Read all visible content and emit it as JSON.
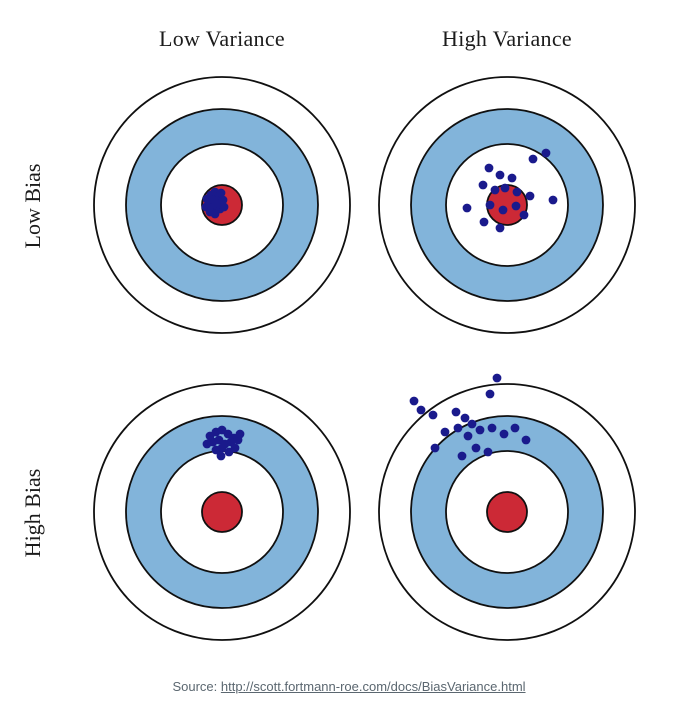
{
  "columns": [
    "Low Variance",
    "High Variance"
  ],
  "rows": [
    "Low Bias",
    "High Bias"
  ],
  "source": {
    "prefix": "Source: ",
    "link": "http://scott.fortmann-roe.com/docs/BiasVariance.html"
  },
  "target": {
    "ring_stroke_width": 1.8,
    "rings": [
      {
        "r": 128,
        "fill": "#ffffff",
        "stroke": "#101010"
      },
      {
        "r": 96,
        "fill": "#82b4da",
        "stroke": "#101010"
      },
      {
        "r": 61,
        "fill": "#ffffff",
        "stroke": "#101010"
      },
      {
        "r": 20,
        "fill": "#cc2936",
        "stroke": "#101010"
      }
    ],
    "dot": {
      "r": 4.4,
      "fill": "#1a1a8c"
    }
  },
  "panels": [
    {
      "name": "low-bias-low-variance",
      "dots": [
        [
          -15,
          -6
        ],
        [
          -11,
          -10
        ],
        [
          -7,
          -13
        ],
        [
          -3,
          -9
        ],
        [
          -13,
          -2
        ],
        [
          -9,
          -5
        ],
        [
          -5,
          -4
        ],
        [
          -1,
          -12
        ],
        [
          -16,
          2
        ],
        [
          -10,
          3
        ],
        [
          -6,
          0
        ],
        [
          -2,
          4
        ],
        [
          -12,
          7
        ],
        [
          -7,
          9
        ],
        [
          -3,
          -1
        ],
        [
          1,
          -5
        ],
        [
          2,
          2
        ]
      ]
    },
    {
      "name": "low-bias-high-variance",
      "dots": [
        [
          26,
          -46
        ],
        [
          39,
          -52
        ],
        [
          -18,
          -37
        ],
        [
          -7,
          -30
        ],
        [
          5,
          -27
        ],
        [
          -24,
          -20
        ],
        [
          -12,
          -15
        ],
        [
          -2,
          -17
        ],
        [
          10,
          -13
        ],
        [
          23,
          -9
        ],
        [
          46,
          -5
        ],
        [
          -40,
          3
        ],
        [
          -17,
          0
        ],
        [
          -4,
          5
        ],
        [
          9,
          1
        ],
        [
          -23,
          17
        ],
        [
          -7,
          23
        ],
        [
          17,
          10
        ]
      ]
    },
    {
      "name": "high-bias-low-variance",
      "dots": [
        [
          -12,
          -76
        ],
        [
          -6,
          -80
        ],
        [
          0,
          -82
        ],
        [
          6,
          -78
        ],
        [
          12,
          -74
        ],
        [
          -15,
          -68
        ],
        [
          -9,
          -70
        ],
        [
          -3,
          -72
        ],
        [
          3,
          -68
        ],
        [
          9,
          -70
        ],
        [
          16,
          -72
        ],
        [
          -6,
          -62
        ],
        [
          0,
          -64
        ],
        [
          7,
          -60
        ],
        [
          13,
          -64
        ],
        [
          -1,
          -56
        ],
        [
          18,
          -78
        ]
      ]
    },
    {
      "name": "high-bias-high-variance",
      "dots": [
        [
          -10,
          -134
        ],
        [
          -17,
          -118
        ],
        [
          -93,
          -111
        ],
        [
          -86,
          -102
        ],
        [
          -74,
          -97
        ],
        [
          -51,
          -100
        ],
        [
          -42,
          -94
        ],
        [
          -35,
          -88
        ],
        [
          -49,
          -84
        ],
        [
          -62,
          -80
        ],
        [
          -39,
          -76
        ],
        [
          -27,
          -82
        ],
        [
          -15,
          -84
        ],
        [
          -3,
          -78
        ],
        [
          8,
          -84
        ],
        [
          19,
          -72
        ],
        [
          -31,
          -64
        ],
        [
          -45,
          -56
        ],
        [
          -19,
          -60
        ],
        [
          -72,
          -64
        ]
      ]
    }
  ]
}
